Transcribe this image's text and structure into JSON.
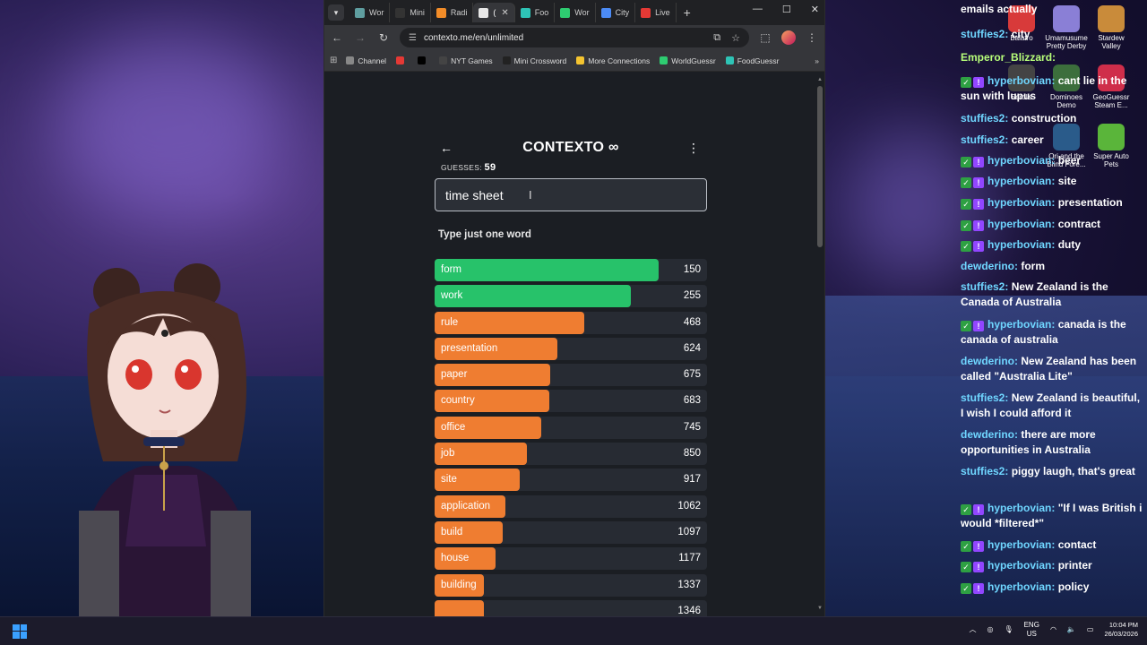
{
  "browser": {
    "tabs": [
      {
        "label": "Wor",
        "color": "#5f9ea0"
      },
      {
        "label": "Mini",
        "color": "#333333"
      },
      {
        "label": "Radi",
        "color": "#f28c28"
      },
      {
        "label": "(",
        "color": "#e8e8e8",
        "active": true
      },
      {
        "label": "Foo",
        "color": "#2ec4b6"
      },
      {
        "label": "Wor",
        "color": "#2ecc71"
      },
      {
        "label": "City",
        "color": "#4c8bf5"
      },
      {
        "label": "Live",
        "color": "#e53935"
      }
    ],
    "new_tab": "+",
    "url": "contexto.me/en/unlimited",
    "bookmarks": [
      {
        "label": "Channel",
        "color": "#888888"
      },
      {
        "label": "",
        "color": "#e53935"
      },
      {
        "label": "",
        "color": "#000000"
      },
      {
        "label": "NYT Games",
        "color": "#444444"
      },
      {
        "label": "Mini Crossword",
        "color": "#222222"
      },
      {
        "label": "More Connections",
        "color": "#f4c430"
      },
      {
        "label": "WorldGuessr",
        "color": "#2ecc71"
      },
      {
        "label": "FoodGuessr",
        "color": "#2ec4b6"
      }
    ]
  },
  "game": {
    "title": "CONTEXTO",
    "infinity": "∞",
    "guesses_label": "GUESSES:",
    "guesses_count": "59",
    "input_value": "time sheet",
    "hint": "Type just one word",
    "max_rank": 1500,
    "results": [
      {
        "word": "form",
        "rank": 150,
        "color": "green",
        "fill": 0.822
      },
      {
        "word": "work",
        "rank": 255,
        "color": "green",
        "fill": 0.72
      },
      {
        "word": "rule",
        "rank": 468,
        "color": "orange",
        "fill": 0.55
      },
      {
        "word": "presentation",
        "rank": 624,
        "color": "orange",
        "fill": 0.452
      },
      {
        "word": "paper",
        "rank": 675,
        "color": "orange",
        "fill": 0.425
      },
      {
        "word": "country",
        "rank": 683,
        "color": "orange",
        "fill": 0.42
      },
      {
        "word": "office",
        "rank": 745,
        "color": "orange",
        "fill": 0.39
      },
      {
        "word": "job",
        "rank": 850,
        "color": "orange",
        "fill": 0.34
      },
      {
        "word": "site",
        "rank": 917,
        "color": "orange",
        "fill": 0.313
      },
      {
        "word": "application",
        "rank": 1062,
        "color": "orange",
        "fill": 0.26
      },
      {
        "word": "build",
        "rank": 1097,
        "color": "orange",
        "fill": 0.25
      },
      {
        "word": "house",
        "rank": 1177,
        "color": "orange",
        "fill": 0.225
      },
      {
        "word": "building",
        "rank": 1337,
        "color": "orange",
        "fill": 0.18
      },
      {
        "word": "",
        "rank": 1346,
        "color": "orange",
        "fill": 0.18
      }
    ]
  },
  "chat": [
    {
      "user": "",
      "text": "emails actually",
      "badges": false
    },
    {
      "user": "stuffies2:",
      "text": "city",
      "badges": false
    },
    {
      "user": "Emperor_Blizzard:",
      "text": "",
      "badges": false,
      "green": true
    },
    {
      "user": "hyperbovian:",
      "text": "cant lie in the sun with lupus",
      "badges": true
    },
    {
      "user": "stuffies2:",
      "text": "construction",
      "badges": false
    },
    {
      "user": "stuffies2:",
      "text": "career",
      "badges": false
    },
    {
      "user": "hyperbovian:",
      "text": "beer",
      "badges": true
    },
    {
      "user": "hyperbovian:",
      "text": "site",
      "badges": true
    },
    {
      "user": "hyperbovian:",
      "text": "presentation",
      "badges": true
    },
    {
      "user": "hyperbovian:",
      "text": "contract",
      "badges": true
    },
    {
      "user": "hyperbovian:",
      "text": "duty",
      "badges": true
    },
    {
      "user": "dewderino:",
      "text": "form",
      "badges": false
    },
    {
      "user": "stuffies2:",
      "text": "New Zealand is the Canada of Australia",
      "badges": false
    },
    {
      "user": "hyperbovian:",
      "text": "canada is the canada of australia",
      "badges": true
    },
    {
      "user": "dewderino:",
      "text": "New Zealand has been called \"Australia Lite\"",
      "badges": false
    },
    {
      "user": "stuffies2:",
      "text": "New Zealand is beautiful, I wish I could afford it",
      "badges": false
    },
    {
      "user": "dewderino:",
      "text": "there are more opportunities in Australia",
      "badges": false
    },
    {
      "user": "stuffies2:",
      "text": "piggy laugh, that's great",
      "badges": false
    },
    {
      "user": "hyperbovian:",
      "text": "\"If I was British i would *filtered*\"",
      "badges": true
    },
    {
      "user": "hyperbovian:",
      "text": "contact",
      "badges": true
    },
    {
      "user": "hyperbovian:",
      "text": "printer",
      "badges": true
    },
    {
      "user": "hyperbovian:",
      "text": "policy",
      "badges": true
    }
  ],
  "desktop_icons": [
    {
      "label": "Balatro",
      "color": "#d83a3a"
    },
    {
      "label": "Umamusume Pretty Derby",
      "color": "#8a7fd6"
    },
    {
      "label": "Stardew Valley",
      "color": "#c98b3a"
    },
    {
      "label": "Scrolls",
      "color": "#444444"
    },
    {
      "label": "Dominoes Demo",
      "color": "#3c6e3c"
    },
    {
      "label": "GeoGuessr Steam E...",
      "color": "#cf2e4a"
    },
    {
      "label": "Ori and the Blind Fore...",
      "color": "#2a5b8a"
    },
    {
      "label": "Super Auto Pets",
      "color": "#5ab53a"
    }
  ],
  "taskbar": {
    "lang_top": "ENG",
    "lang_bottom": "US",
    "time": "10:04 PM",
    "date": "26/03/2026"
  }
}
